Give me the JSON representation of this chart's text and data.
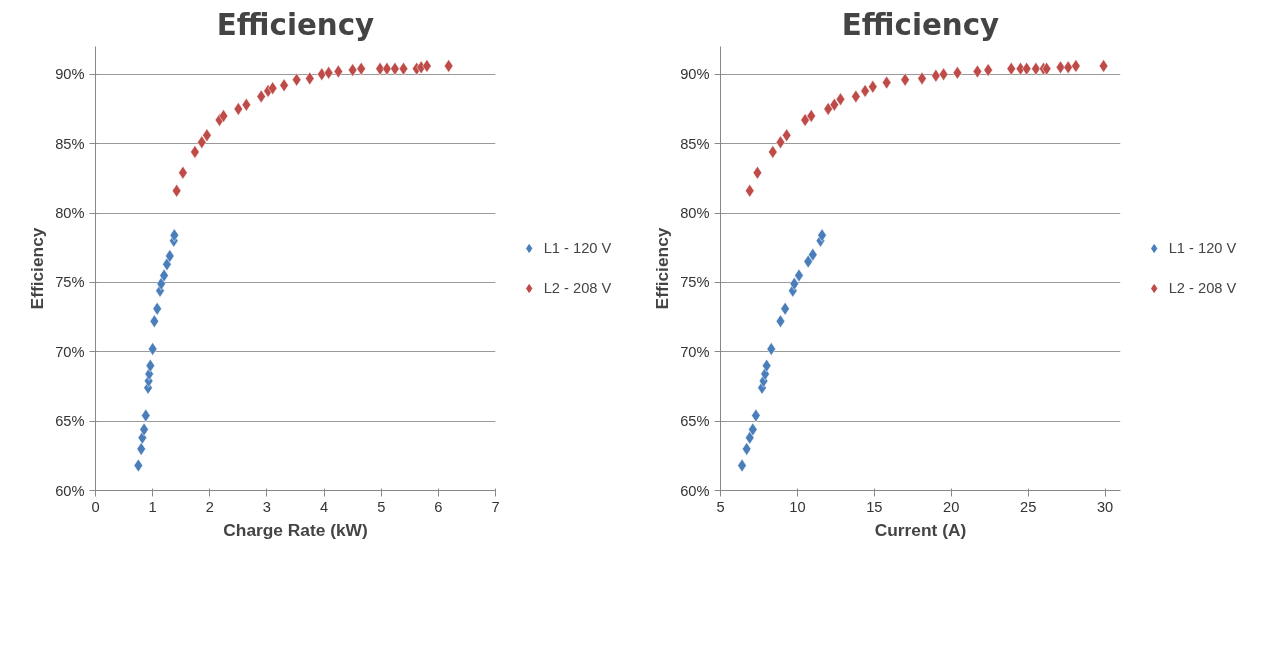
{
  "chart_data": [
    {
      "type": "scatter",
      "title": "Efficiency",
      "xlabel": "Charge Rate (kW)",
      "ylabel": "Efficiency",
      "xlim": [
        0,
        7
      ],
      "xticks": [
        0,
        1,
        2,
        3,
        4,
        5,
        6,
        7
      ],
      "ylim": [
        60,
        92
      ],
      "yticks": [
        {
          "value": 60,
          "label": "60%"
        },
        {
          "value": 65,
          "label": "65%"
        },
        {
          "value": 70,
          "label": "70%"
        },
        {
          "value": 75,
          "label": "75%"
        },
        {
          "value": 80,
          "label": "80%"
        },
        {
          "value": 85,
          "label": "85%"
        },
        {
          "value": 90,
          "label": "90%"
        }
      ],
      "grid": "y",
      "legend": "right",
      "marker": "diamond",
      "series": [
        {
          "name": "L1 - 120 V",
          "color": "#4a7ebb",
          "x": [
            0.75,
            0.8,
            0.82,
            0.85,
            0.88,
            0.92,
            0.93,
            0.94,
            0.96,
            1.0,
            1.03,
            1.08,
            1.13,
            1.15,
            1.2,
            1.25,
            1.3,
            1.37,
            1.38
          ],
          "values": [
            61.8,
            63.0,
            63.8,
            64.4,
            65.4,
            67.4,
            67.9,
            68.4,
            69.0,
            70.2,
            72.2,
            73.1,
            74.4,
            74.9,
            75.5,
            76.3,
            76.9,
            78.0,
            78.4
          ]
        },
        {
          "name": "L2 - 208 V",
          "color": "#be4b48",
          "x": [
            1.42,
            1.53,
            1.74,
            1.86,
            1.95,
            2.17,
            2.24,
            2.5,
            2.64,
            2.9,
            3.02,
            3.1,
            3.3,
            3.52,
            3.75,
            3.96,
            4.08,
            4.25,
            4.5,
            4.65,
            4.98,
            5.1,
            5.24,
            5.39,
            5.62,
            5.7,
            5.8,
            6.18
          ],
          "values": [
            81.6,
            82.9,
            84.4,
            85.1,
            85.6,
            86.7,
            87.0,
            87.5,
            87.8,
            88.4,
            88.8,
            89.0,
            89.2,
            89.6,
            89.7,
            90.0,
            90.1,
            90.2,
            90.3,
            90.4,
            90.4,
            90.4,
            90.4,
            90.4,
            90.4,
            90.5,
            90.6,
            90.6
          ]
        }
      ]
    },
    {
      "type": "scatter",
      "title": "Efficiency",
      "xlabel": "Current (A)",
      "ylabel": "Efficiency",
      "xlim": [
        5,
        31
      ],
      "xticks": [
        5,
        10,
        15,
        20,
        25,
        30
      ],
      "ylim": [
        60,
        92
      ],
      "yticks": [
        {
          "value": 60,
          "label": "60%"
        },
        {
          "value": 65,
          "label": "65%"
        },
        {
          "value": 70,
          "label": "70%"
        },
        {
          "value": 75,
          "label": "75%"
        },
        {
          "value": 80,
          "label": "80%"
        },
        {
          "value": 85,
          "label": "85%"
        },
        {
          "value": 90,
          "label": "90%"
        }
      ],
      "grid": "y",
      "legend": "right",
      "marker": "diamond",
      "series": [
        {
          "name": "L1 - 120 V",
          "color": "#4a7ebb",
          "x": [
            6.4,
            6.7,
            6.9,
            7.1,
            7.3,
            7.7,
            7.8,
            7.9,
            8.0,
            8.3,
            8.9,
            9.2,
            9.7,
            9.8,
            10.1,
            10.7,
            11.0,
            11.5,
            11.6
          ],
          "values": [
            61.8,
            63.0,
            63.8,
            64.4,
            65.4,
            67.4,
            67.9,
            68.4,
            69.0,
            70.2,
            72.2,
            73.1,
            74.4,
            74.9,
            75.5,
            76.5,
            77.0,
            78.0,
            78.4
          ]
        },
        {
          "name": "L2 - 208 V",
          "color": "#be4b48",
          "x": [
            6.9,
            7.4,
            8.4,
            8.9,
            9.3,
            10.5,
            10.9,
            12.0,
            12.4,
            12.8,
            13.8,
            14.4,
            14.9,
            15.8,
            17.0,
            18.1,
            19.0,
            19.5,
            20.4,
            21.7,
            22.4,
            23.9,
            24.5,
            24.9,
            25.5,
            26.0,
            26.2,
            27.1,
            27.6,
            28.1,
            29.9
          ],
          "values": [
            81.6,
            82.9,
            84.4,
            85.1,
            85.6,
            86.7,
            87.0,
            87.5,
            87.8,
            88.2,
            88.4,
            88.8,
            89.1,
            89.4,
            89.6,
            89.7,
            89.9,
            90.0,
            90.1,
            90.2,
            90.3,
            90.4,
            90.4,
            90.4,
            90.4,
            90.4,
            90.4,
            90.5,
            90.5,
            90.6,
            90.6
          ]
        }
      ]
    }
  ]
}
